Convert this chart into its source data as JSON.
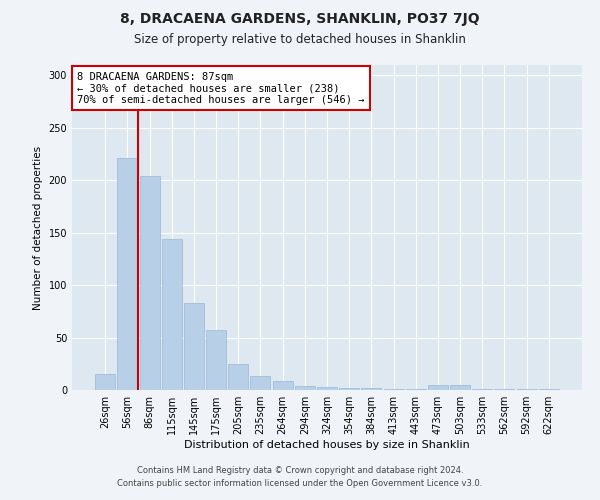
{
  "title": "8, DRACAENA GARDENS, SHANKLIN, PO37 7JQ",
  "subtitle": "Size of property relative to detached houses in Shanklin",
  "xlabel": "Distribution of detached houses by size in Shanklin",
  "ylabel": "Number of detached properties",
  "bar_color": "#b8cfe8",
  "bar_edge_color": "#9ab8d8",
  "bg_color": "#dde8f0",
  "grid_color": "#ffffff",
  "categories": [
    "26sqm",
    "56sqm",
    "86sqm",
    "115sqm",
    "145sqm",
    "175sqm",
    "205sqm",
    "235sqm",
    "264sqm",
    "294sqm",
    "324sqm",
    "354sqm",
    "384sqm",
    "413sqm",
    "443sqm",
    "473sqm",
    "503sqm",
    "533sqm",
    "562sqm",
    "592sqm",
    "622sqm"
  ],
  "values": [
    15,
    221,
    204,
    144,
    83,
    57,
    25,
    13,
    9,
    4,
    3,
    2,
    2,
    1,
    1,
    5,
    5,
    1,
    1,
    1,
    1
  ],
  "property_line_color": "#cc0000",
  "property_line_bar_index": 2,
  "annotation_text": "8 DRACAENA GARDENS: 87sqm\n← 30% of detached houses are smaller (238)\n70% of semi-detached houses are larger (546) →",
  "annotation_box_color": "#ffffff",
  "annotation_box_edge": "#cc0000",
  "footer1": "Contains HM Land Registry data © Crown copyright and database right 2024.",
  "footer2": "Contains public sector information licensed under the Open Government Licence v3.0.",
  "ylim": [
    0,
    310
  ],
  "yticks": [
    0,
    50,
    100,
    150,
    200,
    250,
    300
  ],
  "fig_bg": "#f0f4f8"
}
